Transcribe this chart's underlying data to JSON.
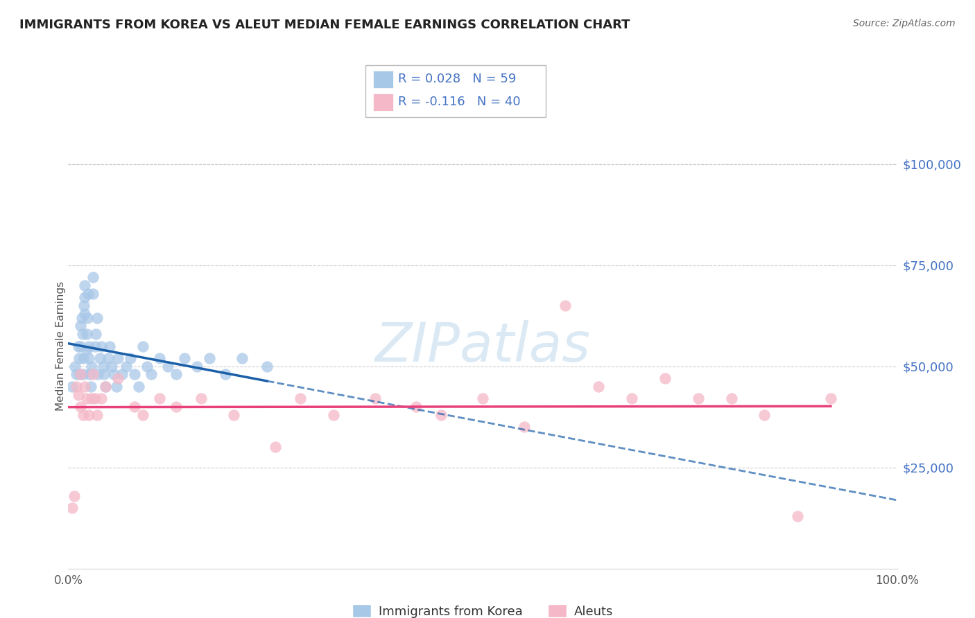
{
  "title": "IMMIGRANTS FROM KOREA VS ALEUT MEDIAN FEMALE EARNINGS CORRELATION CHART",
  "source": "Source: ZipAtlas.com",
  "ylabel": "Median Female Earnings",
  "legend_label1": "Immigrants from Korea",
  "legend_label2": "Aleuts",
  "r1": 0.028,
  "n1": 59,
  "r2": -0.116,
  "n2": 40,
  "xlim": [
    0.0,
    1.0
  ],
  "ylim": [
    0,
    110000
  ],
  "ytick_values": [
    25000,
    50000,
    75000,
    100000
  ],
  "color_blue": "#a8c8e8",
  "color_pink": "#f4b8c8",
  "line_blue": "#1a5fa8",
  "line_pink": "#e8407a",
  "watermark": "ZIPatlas",
  "blue_scatter_x": [
    0.005,
    0.008,
    0.01,
    0.012,
    0.013,
    0.014,
    0.015,
    0.015,
    0.016,
    0.017,
    0.018,
    0.018,
    0.019,
    0.02,
    0.02,
    0.02,
    0.022,
    0.022,
    0.023,
    0.024,
    0.025,
    0.025,
    0.026,
    0.027,
    0.028,
    0.03,
    0.03,
    0.032,
    0.033,
    0.035,
    0.036,
    0.038,
    0.04,
    0.042,
    0.043,
    0.045,
    0.048,
    0.05,
    0.052,
    0.055,
    0.058,
    0.06,
    0.065,
    0.07,
    0.075,
    0.08,
    0.085,
    0.09,
    0.095,
    0.1,
    0.11,
    0.12,
    0.13,
    0.14,
    0.155,
    0.17,
    0.19,
    0.21,
    0.24
  ],
  "blue_scatter_y": [
    45000,
    50000,
    48000,
    55000,
    52000,
    48000,
    60000,
    55000,
    62000,
    58000,
    52000,
    48000,
    65000,
    70000,
    67000,
    63000,
    58000,
    54000,
    62000,
    68000,
    55000,
    52000,
    48000,
    45000,
    50000,
    72000,
    68000,
    55000,
    58000,
    62000,
    48000,
    52000,
    55000,
    50000,
    48000,
    45000,
    52000,
    55000,
    50000,
    48000,
    45000,
    52000,
    48000,
    50000,
    52000,
    48000,
    45000,
    55000,
    50000,
    48000,
    52000,
    50000,
    48000,
    52000,
    50000,
    52000,
    48000,
    52000,
    50000
  ],
  "pink_scatter_x": [
    0.005,
    0.007,
    0.01,
    0.012,
    0.015,
    0.015,
    0.018,
    0.02,
    0.022,
    0.025,
    0.028,
    0.03,
    0.032,
    0.035,
    0.04,
    0.045,
    0.06,
    0.08,
    0.09,
    0.11,
    0.13,
    0.16,
    0.2,
    0.25,
    0.28,
    0.32,
    0.37,
    0.42,
    0.45,
    0.5,
    0.55,
    0.6,
    0.64,
    0.68,
    0.72,
    0.76,
    0.8,
    0.84,
    0.88,
    0.92
  ],
  "pink_scatter_y": [
    15000,
    18000,
    45000,
    43000,
    48000,
    40000,
    38000,
    45000,
    42000,
    38000,
    42000,
    48000,
    42000,
    38000,
    42000,
    45000,
    47000,
    40000,
    38000,
    42000,
    40000,
    42000,
    38000,
    30000,
    42000,
    38000,
    42000,
    40000,
    38000,
    42000,
    35000,
    65000,
    45000,
    42000,
    47000,
    42000,
    42000,
    38000,
    13000,
    42000
  ]
}
